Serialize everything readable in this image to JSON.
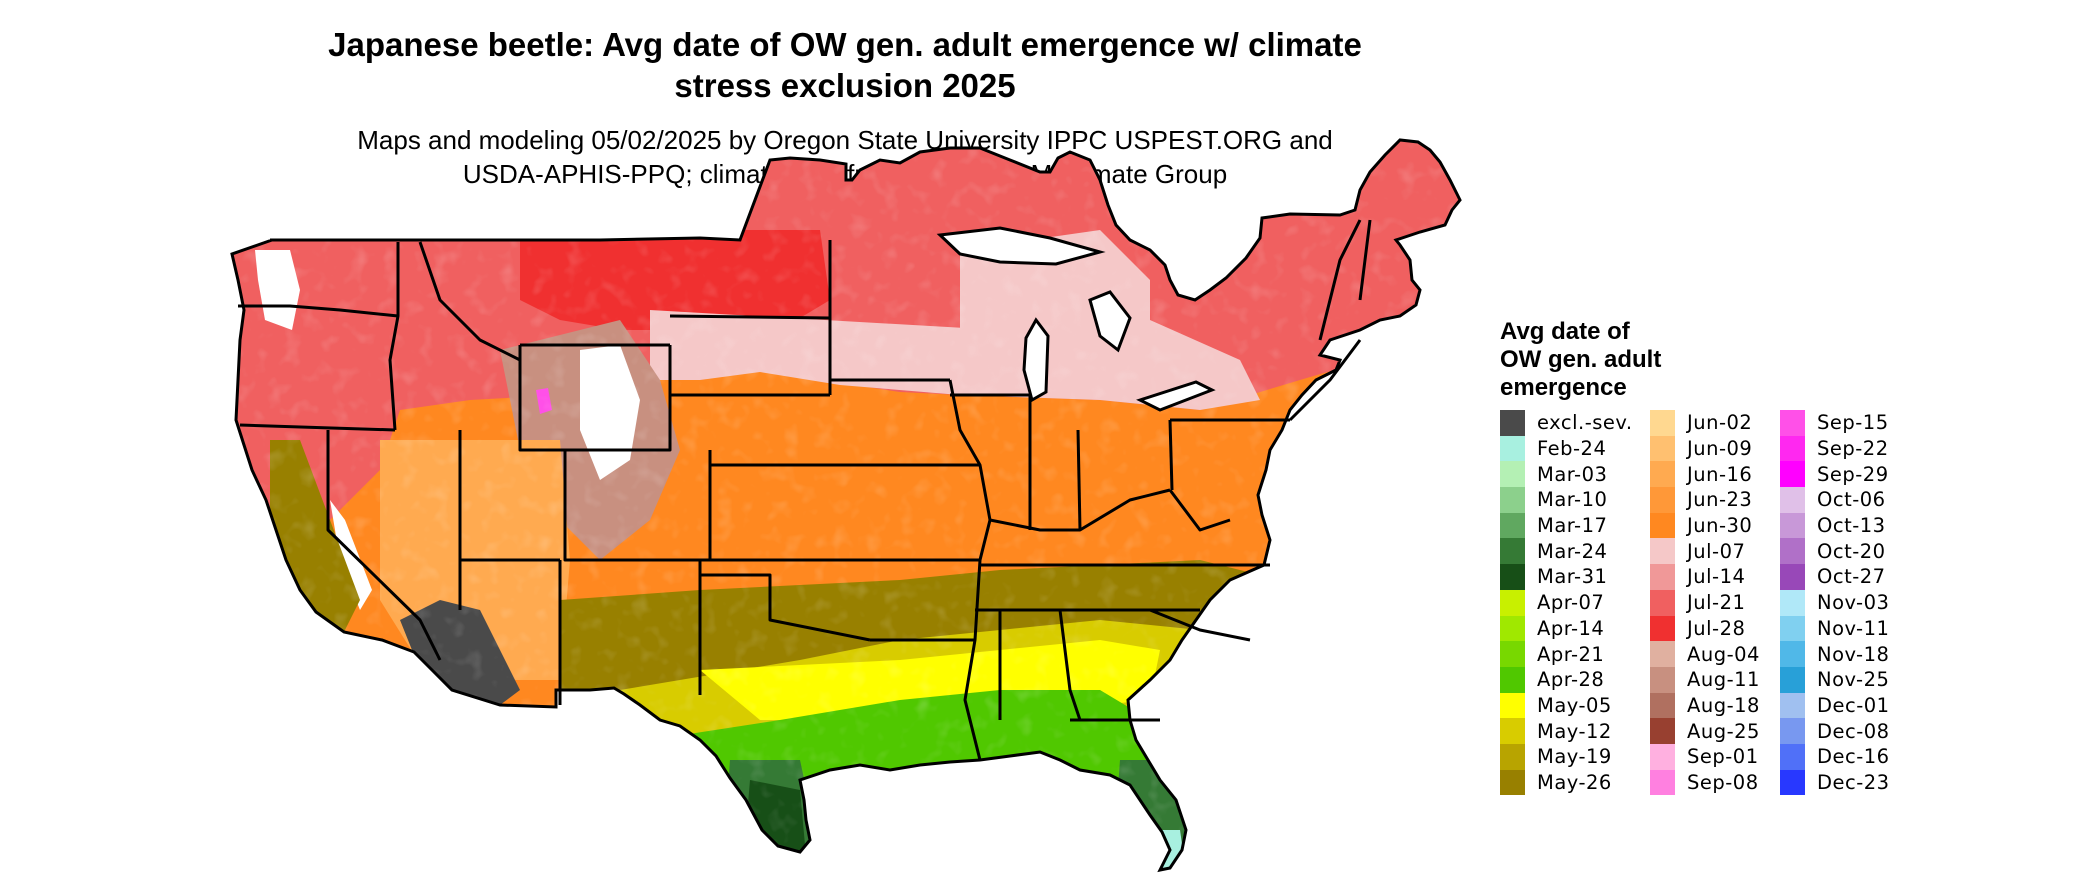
{
  "title_lines": [
    "Japanese beetle: Avg date of OW gen. adult emergence w/ climate",
    "stress exclusion 2025"
  ],
  "subtitle_lines": [
    "Maps and modeling 05/02/2025 by Oregon State University IPPC USPEST.ORG and",
    "USDA-APHIS-PPQ; climate data from OSU PRISM Climate Group"
  ],
  "legend": {
    "title_lines": [
      "Avg date of",
      "OW gen. adult",
      "emergence"
    ],
    "items": [
      {
        "label": "excl.-sev.",
        "color": "#4a4a4a"
      },
      {
        "label": "Feb-24",
        "color": "#a8f0e0"
      },
      {
        "label": "Mar-03",
        "color": "#b4f0b4"
      },
      {
        "label": "Mar-10",
        "color": "#8cd08c"
      },
      {
        "label": "Mar-17",
        "color": "#60a860"
      },
      {
        "label": "Mar-24",
        "color": "#357a35"
      },
      {
        "label": "Mar-31",
        "color": "#174f17"
      },
      {
        "label": "Apr-07",
        "color": "#c8f000"
      },
      {
        "label": "Apr-14",
        "color": "#a0e800"
      },
      {
        "label": "Apr-21",
        "color": "#78d800"
      },
      {
        "label": "Apr-28",
        "color": "#50c800"
      },
      {
        "label": "May-05",
        "color": "#ffff00"
      },
      {
        "label": "May-12",
        "color": "#d8cc00"
      },
      {
        "label": "May-19",
        "color": "#b8a400"
      },
      {
        "label": "May-26",
        "color": "#988000"
      },
      {
        "label": "Jun-02",
        "color": "#ffd890"
      },
      {
        "label": "Jun-09",
        "color": "#ffc070"
      },
      {
        "label": "Jun-16",
        "color": "#ffaa50"
      },
      {
        "label": "Jun-23",
        "color": "#ff9838"
      },
      {
        "label": "Jun-30",
        "color": "#ff8820"
      },
      {
        "label": "Jul-07",
        "color": "#f5c8c8"
      },
      {
        "label": "Jul-14",
        "color": "#f09898"
      },
      {
        "label": "Jul-21",
        "color": "#f06060"
      },
      {
        "label": "Jul-28",
        "color": "#f03030"
      },
      {
        "label": "Aug-04",
        "color": "#e0b0a0"
      },
      {
        "label": "Aug-11",
        "color": "#c89080"
      },
      {
        "label": "Aug-18",
        "color": "#b07060"
      },
      {
        "label": "Aug-25",
        "color": "#984030"
      },
      {
        "label": "Sep-01",
        "color": "#ffb0e0"
      },
      {
        "label": "Sep-08",
        "color": "#ff80e0"
      },
      {
        "label": "Sep-15",
        "color": "#ff50e8"
      },
      {
        "label": "Sep-22",
        "color": "#ff28f0"
      },
      {
        "label": "Sep-29",
        "color": "#ff00ff"
      },
      {
        "label": "Oct-06",
        "color": "#e0c0e8"
      },
      {
        "label": "Oct-13",
        "color": "#c898d8"
      },
      {
        "label": "Oct-20",
        "color": "#b070c8"
      },
      {
        "label": "Oct-27",
        "color": "#9848b8"
      },
      {
        "label": "Nov-03",
        "color": "#b0e8f8"
      },
      {
        "label": "Nov-11",
        "color": "#80d0f0"
      },
      {
        "label": "Nov-18",
        "color": "#50b8e8"
      },
      {
        "label": "Nov-25",
        "color": "#28a0d8"
      },
      {
        "label": "Dec-01",
        "color": "#a0c0f0"
      },
      {
        "label": "Dec-08",
        "color": "#7898f0"
      },
      {
        "label": "Dec-16",
        "color": "#5070f8"
      },
      {
        "label": "Dec-23",
        "color": "#2838ff"
      }
    ]
  },
  "map": {
    "colors": {
      "outline": "#000000",
      "north_red": "#f06060",
      "north_deep_red": "#f03030",
      "north_pink": "#f5c8c8",
      "mountain_brown": "#c89080",
      "high_snow": "#ffffff",
      "mountain_magenta": "#ff50e8",
      "central_orange": "#ff8820",
      "central_light_orange": "#ffaa50",
      "south_olive": "#988000",
      "south_yellow": "#d8cc00",
      "south_bright_yellow": "#ffff00",
      "gulf_green": "#50c800",
      "tip_green": "#357a35",
      "tip_dark_green": "#174f17",
      "tip_light": "#a8f0e0",
      "exclusion_gray": "#4a4a4a"
    }
  }
}
